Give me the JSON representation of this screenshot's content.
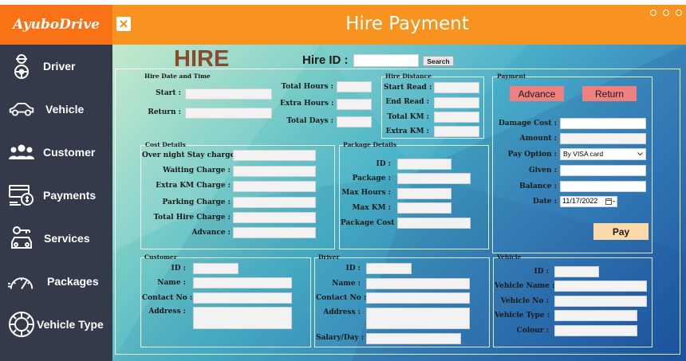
{
  "app": {
    "logo": "AyuboDrive",
    "title": "Hire Payment"
  },
  "sidebar": {
    "items": [
      {
        "label": "Driver",
        "icon": "driver-icon"
      },
      {
        "label": "Vehicle",
        "icon": "car-icon"
      },
      {
        "label": "Customer",
        "icon": "customers-icon"
      },
      {
        "label": "Payments",
        "icon": "payments-icon"
      },
      {
        "label": "Services",
        "icon": "services-icon"
      },
      {
        "label": "Packages",
        "icon": "speedometer-icon"
      },
      {
        "label": "Vehicle Type",
        "icon": "tire-icon"
      }
    ]
  },
  "colors": {
    "accent": "#f7931e",
    "logo_bg": "#f97316",
    "sidebar_bg": "#343a4a",
    "hire_text": "#8b4a2b",
    "action_button": "#f08080",
    "pay_button": "#fcd9a8"
  },
  "form": {
    "hire_heading": "HIRE",
    "hire_id_label": "Hire ID :",
    "hire_id_value": "",
    "search_label": "Search",
    "hire_date": {
      "title": "Hire Date and Time",
      "start_label": "Start :",
      "return_label": "Return :",
      "total_hours_label": "Total Hours :",
      "extra_hours_label": "Extra Hours :",
      "total_days_label": "Total Days :"
    },
    "hire_distance": {
      "title": "Hire Distance",
      "start_read_label": "Start Read :",
      "end_read_label": "End Read :",
      "total_km_label": "Total KM :",
      "extra_km_label": "Extra KM :"
    },
    "payment": {
      "title": "Payment",
      "advance_button": "Advance",
      "return_button": "Return",
      "damage_cost_label": "Damage Cost :",
      "amount_label": "Amount :",
      "pay_option_label": "Pay Option :",
      "pay_option_value": "By VISA card",
      "given_label": "Given :",
      "balance_label": "Balance :",
      "date_label": "Date :",
      "date_value": "11/17/2022",
      "pay_button": "Pay"
    },
    "cost_details": {
      "title": "Cost Details",
      "overnight_label": "Over night Stay charge :",
      "waiting_label": "Waiting Charge :",
      "extra_km_label": "Extra KM Charge :",
      "parking_label": "Parking Charge :",
      "total_hire_label": "Total Hire Charge :",
      "advance_label": "Advance :"
    },
    "package_details": {
      "title": "Package Details",
      "id_label": "ID :",
      "package_label": "Package :",
      "max_hours_label": "Max Hours :",
      "max_km_label": "Max KM :",
      "package_cost_label": "Package Cost :"
    },
    "customer": {
      "title": "Customer",
      "id_label": "ID :",
      "name_label": "Name :",
      "contact_label": "Contact No :",
      "address_label": "Address :"
    },
    "driver": {
      "title": "Driver",
      "id_label": "ID :",
      "name_label": "Name :",
      "contact_label": "Contact No :",
      "address_label": "Address :",
      "salary_label": "Salary/Day :"
    },
    "vehicle": {
      "title": "Vehicle",
      "id_label": "ID :",
      "name_label": "Vehicle Name :",
      "no_label": "Vehicle No :",
      "type_label": "Vehicle Type :",
      "colour_label": "Colour :"
    }
  }
}
